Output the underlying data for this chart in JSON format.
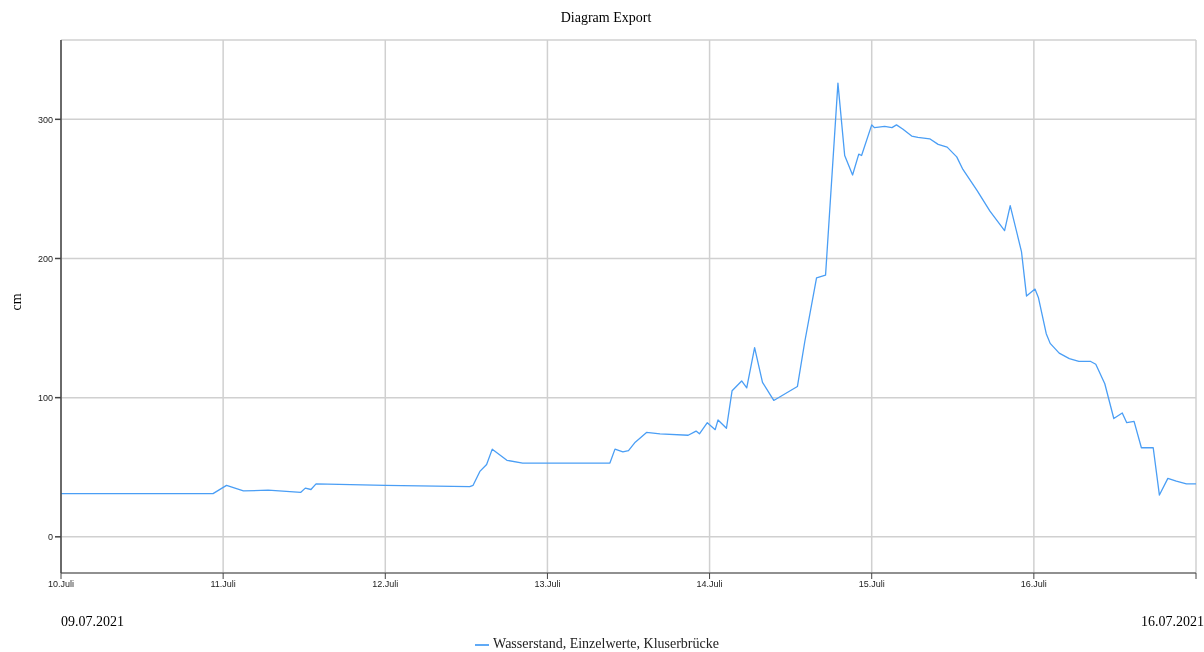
{
  "chart_data": {
    "type": "line",
    "title": "Diagram Export",
    "ylabel": "cm",
    "annotations": [
      "09.07.2021",
      "16.07.2021"
    ],
    "x": [
      "2021-07-10T00:00",
      "2021-07-10T04:00",
      "2021-07-10T12:00",
      "2021-07-10T20:00",
      "2021-07-10T22:30",
      "2021-07-11T00:30",
      "2021-07-11T03:00",
      "2021-07-11T06:40",
      "2021-07-11T11:30",
      "2021-07-11T12:10",
      "2021-07-11T13:00",
      "2021-07-11T13:45",
      "2021-07-12T00:00",
      "2021-07-12T12:30",
      "2021-07-12T13:00",
      "2021-07-12T14:00",
      "2021-07-12T15:00",
      "2021-07-12T15:50",
      "2021-07-12T18:00",
      "2021-07-12T20:20",
      "2021-07-13T00:00",
      "2021-07-13T09:15",
      "2021-07-13T10:00",
      "2021-07-13T11:10",
      "2021-07-13T12:00",
      "2021-07-13T13:00",
      "2021-07-13T14:40",
      "2021-07-13T16:40",
      "2021-07-13T20:50",
      "2021-07-13T22:00",
      "2021-07-13T22:30",
      "2021-07-13T23:40",
      "2021-07-14T00:50",
      "2021-07-14T01:15",
      "2021-07-14T02:30",
      "2021-07-14T03:20",
      "2021-07-14T04:45",
      "2021-07-14T05:30",
      "2021-07-14T06:40",
      "2021-07-14T07:50",
      "2021-07-14T09:30",
      "2021-07-14T13:00",
      "2021-07-14T14:05",
      "2021-07-14T15:50",
      "2021-07-14T17:10",
      "2021-07-14T19:00",
      "2021-07-14T20:00",
      "2021-07-14T21:10",
      "2021-07-14T22:05",
      "2021-07-14T22:30",
      "2021-07-15T00:00",
      "2021-07-15T00:25",
      "2021-07-15T01:55",
      "2021-07-15T03:00",
      "2021-07-15T03:40",
      "2021-07-15T04:35",
      "2021-07-15T05:55",
      "2021-07-15T06:50",
      "2021-07-15T08:35",
      "2021-07-15T09:50",
      "2021-07-15T11:10",
      "2021-07-15T12:35",
      "2021-07-15T13:30",
      "2021-07-15T15:35",
      "2021-07-15T17:30",
      "2021-07-15T19:40",
      "2021-07-15T20:30",
      "2021-07-15T22:10",
      "2021-07-15T22:55",
      "2021-07-16T00:10",
      "2021-07-16T00:40",
      "2021-07-16T01:50",
      "2021-07-16T02:25",
      "2021-07-16T03:45",
      "2021-07-16T05:15",
      "2021-07-16T06:40",
      "2021-07-16T08:25",
      "2021-07-16T09:10",
      "2021-07-16T10:30",
      "2021-07-16T11:50",
      "2021-07-16T13:05",
      "2021-07-16T13:45",
      "2021-07-16T14:50",
      "2021-07-16T15:55",
      "2021-07-16T17:40",
      "2021-07-16T18:35",
      "2021-07-16T19:50",
      "2021-07-16T21:05",
      "2021-07-16T22:35",
      "2021-07-17T00:00"
    ],
    "series": [
      {
        "name": "Wasserstand, Einzelwerte, Kluserbrücke",
        "color": "#4a9ef5",
        "values": [
          31,
          31,
          31,
          31,
          31,
          37,
          33,
          33.5,
          32,
          35,
          34,
          38,
          37,
          36,
          37,
          47,
          52,
          63,
          55,
          53,
          53,
          53,
          63,
          61,
          62,
          68,
          75,
          74,
          73,
          76,
          74,
          82,
          77,
          84,
          78,
          105,
          112,
          107,
          136,
          111,
          98,
          108,
          140,
          186,
          188,
          326,
          274,
          260,
          275,
          274,
          296,
          294,
          295,
          294,
          296,
          293,
          288,
          287,
          286,
          282,
          280,
          273,
          264,
          249,
          234,
          220,
          238,
          205,
          173,
          178,
          172,
          146,
          139,
          132,
          128,
          126,
          126,
          124,
          110,
          85,
          89,
          82,
          83,
          64,
          64,
          30,
          42,
          40,
          38,
          38
        ]
      }
    ],
    "xlim": [
      "2021-07-10T00:00",
      "2021-07-17T00:00"
    ],
    "xticks": [
      {
        "value": "2021-07-10",
        "label": "10.Juli"
      },
      {
        "value": "2021-07-11",
        "label": "11.Juli"
      },
      {
        "value": "2021-07-12",
        "label": "12.Juli"
      },
      {
        "value": "2021-07-13",
        "label": "13.Juli"
      },
      {
        "value": "2021-07-14",
        "label": "14.Juli"
      },
      {
        "value": "2021-07-15",
        "label": "15.Juli"
      },
      {
        "value": "2021-07-16",
        "label": "16.Juli"
      },
      {
        "value": "2021-07-17",
        "label": null
      }
    ],
    "ylim": [
      -26,
      357
    ],
    "yticks": [
      0,
      100,
      200,
      300
    ],
    "grid": true,
    "legend": "bottom",
    "marker": "none",
    "line_style": "solid"
  }
}
